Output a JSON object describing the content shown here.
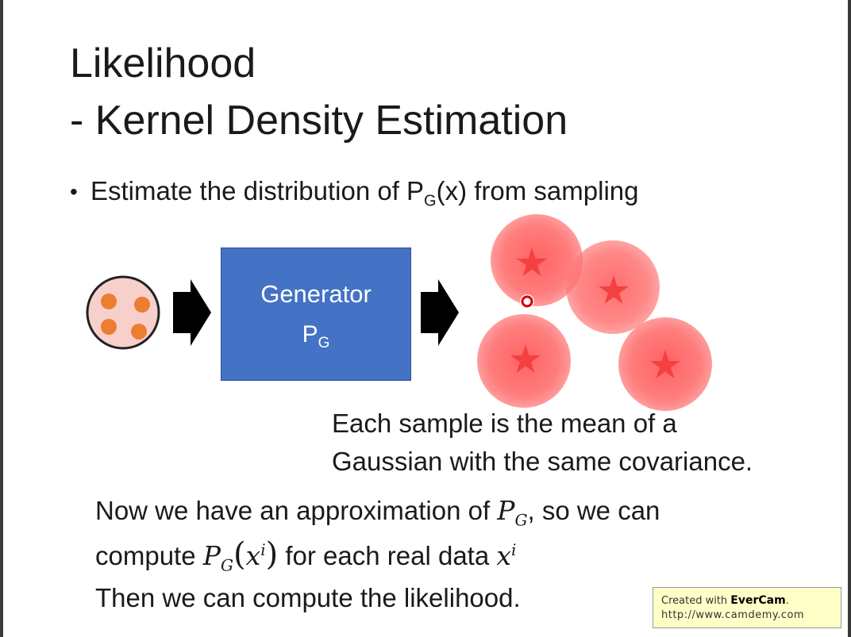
{
  "slide": {
    "title_line1": "Likelihood",
    "title_line2": "- Kernel Density Estimation",
    "bullet_prefix": "Estimate the distribution of P",
    "bullet_sub": "G",
    "bullet_suffix": "(x) from sampling"
  },
  "generator": {
    "label": "Generator",
    "symbol": "P",
    "symbol_sub": "G",
    "color": "#4472c4"
  },
  "caption": {
    "line1": "Each sample is the mean of a",
    "line2": "Gaussian with the same covariance."
  },
  "text": {
    "line1_a": "Now we have an approximation of ",
    "line1_math": "P",
    "line1_sub": "G",
    "line1_b": ", so we can",
    "line2_a": "compute ",
    "line2_math": "P",
    "line2_sub": "G",
    "line2_x": "x",
    "line2_xsup": "i",
    "line2_b": " for each real data ",
    "line2_x2": "x",
    "line2_x2sup": "i",
    "line3": "Then we can compute the likelihood."
  },
  "watermark": {
    "prefix": "Created with ",
    "brand": "EverCam",
    "suffix": ".",
    "url": "http://www.camdemy.com"
  },
  "colors": {
    "gaussian": "#ff6b6b",
    "sample_dot": "#ed7d31",
    "noise_circle": "#f8d0cb"
  },
  "icons": [
    "noise-input-icon",
    "arrow-right-icon",
    "star-icon",
    "real-data-point-icon"
  ]
}
